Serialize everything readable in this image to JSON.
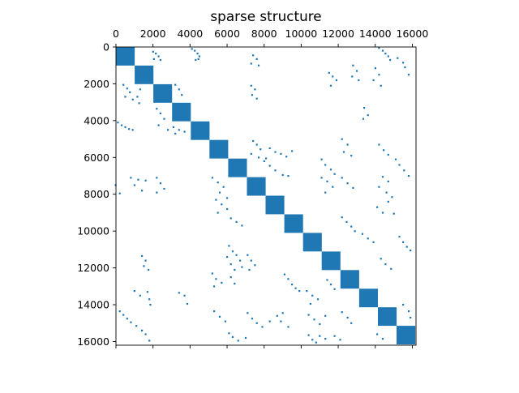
{
  "chart_data": {
    "type": "scatter",
    "subtype": "sparsity-pattern",
    "title": "sparse structure",
    "xlabel": "",
    "ylabel": "",
    "xlim": [
      0,
      16200
    ],
    "ylim": [
      16200,
      0
    ],
    "x_axis_position": "top",
    "y_axis_inverted": true,
    "grid": false,
    "legend": "none",
    "marker_color": "#1f77b4",
    "x_ticks": [
      0,
      2000,
      4000,
      6000,
      8000,
      10000,
      12000,
      14000,
      16000
    ],
    "x_tick_labels": [
      "0",
      "2000",
      "4000",
      "6000",
      "8000",
      "10000",
      "12000",
      "14000",
      "16000"
    ],
    "y_ticks": [
      0,
      2000,
      4000,
      6000,
      8000,
      10000,
      12000,
      14000,
      16000
    ],
    "y_tick_labels": [
      "0",
      "2000",
      "4000",
      "6000",
      "8000",
      "10000",
      "12000",
      "14000",
      "16000"
    ],
    "diagonal_blocks": [
      {
        "start": 0,
        "end": 1010
      },
      {
        "start": 1010,
        "end": 2020
      },
      {
        "start": 2020,
        "end": 3030
      },
      {
        "start": 3030,
        "end": 4040
      },
      {
        "start": 4040,
        "end": 5050
      },
      {
        "start": 5050,
        "end": 6060
      },
      {
        "start": 6060,
        "end": 7070
      },
      {
        "start": 7070,
        "end": 8080
      },
      {
        "start": 8080,
        "end": 9090
      },
      {
        "start": 9090,
        "end": 10100
      },
      {
        "start": 10100,
        "end": 11110
      },
      {
        "start": 11110,
        "end": 12120
      },
      {
        "start": 12120,
        "end": 13130
      },
      {
        "start": 13130,
        "end": 14140
      },
      {
        "start": 14140,
        "end": 15150
      },
      {
        "start": 15150,
        "end": 16160
      }
    ],
    "off_diagonal_points": [
      [
        4100,
        100
      ],
      [
        4250,
        200
      ],
      [
        4400,
        350
      ],
      [
        4500,
        500
      ],
      [
        4450,
        650
      ],
      [
        4300,
        700
      ],
      [
        2000,
        250
      ],
      [
        2150,
        350
      ],
      [
        2300,
        500
      ],
      [
        2050,
        650
      ],
      [
        2400,
        700
      ],
      [
        14200,
        50
      ],
      [
        14400,
        200
      ],
      [
        14550,
        350
      ],
      [
        14700,
        500
      ],
      [
        14800,
        700
      ],
      [
        15200,
        600
      ],
      [
        15500,
        850
      ],
      [
        15600,
        1100
      ],
      [
        15800,
        1500
      ],
      [
        7400,
        450
      ],
      [
        7600,
        650
      ],
      [
        7300,
        900
      ],
      [
        7700,
        1000
      ],
      [
        12800,
        1000
      ],
      [
        13000,
        1300
      ],
      [
        12750,
        1600
      ],
      [
        13100,
        1800
      ],
      [
        14000,
        1150
      ],
      [
        14200,
        1500
      ],
      [
        13900,
        1800
      ],
      [
        14300,
        2100
      ],
      [
        11500,
        1400
      ],
      [
        11700,
        1600
      ],
      [
        11900,
        1800
      ],
      [
        11600,
        2100
      ],
      [
        7300,
        2100
      ],
      [
        7500,
        2300
      ],
      [
        7350,
        2600
      ],
      [
        7600,
        2800
      ],
      [
        400,
        2050
      ],
      [
        600,
        2250
      ],
      [
        750,
        2450
      ],
      [
        500,
        2700
      ],
      [
        900,
        2850
      ],
      [
        1300,
        2300
      ],
      [
        1150,
        2700
      ],
      [
        1250,
        3050
      ],
      [
        3200,
        2050
      ],
      [
        3400,
        2300
      ],
      [
        3550,
        2600
      ],
      [
        13400,
        3300
      ],
      [
        13600,
        3700
      ],
      [
        13350,
        3900
      ],
      [
        2200,
        3350
      ],
      [
        2400,
        3600
      ],
      [
        2600,
        3900
      ],
      [
        2300,
        4250
      ],
      [
        2800,
        4500
      ],
      [
        3100,
        4350
      ],
      [
        3400,
        4500
      ],
      [
        3700,
        4600
      ],
      [
        3200,
        4700
      ],
      [
        100,
        4100
      ],
      [
        300,
        4250
      ],
      [
        500,
        4350
      ],
      [
        700,
        4450
      ],
      [
        900,
        4500
      ],
      [
        7400,
        5100
      ],
      [
        7600,
        5300
      ],
      [
        7800,
        5550
      ],
      [
        8300,
        5500
      ],
      [
        8600,
        5700
      ],
      [
        8900,
        5800
      ],
      [
        9200,
        5950
      ],
      [
        9500,
        5650
      ],
      [
        7300,
        5800
      ],
      [
        7700,
        6000
      ],
      [
        8100,
        6050
      ],
      [
        8000,
        6200
      ],
      [
        8300,
        6450
      ],
      [
        8600,
        6700
      ],
      [
        9000,
        6950
      ],
      [
        9300,
        7000
      ],
      [
        11100,
        6100
      ],
      [
        11300,
        6400
      ],
      [
        11600,
        6650
      ],
      [
        11800,
        6900
      ],
      [
        12200,
        5000
      ],
      [
        12500,
        5300
      ],
      [
        12300,
        5700
      ],
      [
        12700,
        5900
      ],
      [
        14200,
        5300
      ],
      [
        14450,
        5600
      ],
      [
        14700,
        5850
      ],
      [
        15100,
        6100
      ],
      [
        15300,
        6400
      ],
      [
        15550,
        6700
      ],
      [
        15800,
        7000
      ],
      [
        800,
        7100
      ],
      [
        1200,
        7200
      ],
      [
        1600,
        7250
      ],
      [
        1000,
        7500
      ],
      [
        1400,
        7800
      ],
      [
        2200,
        7100
      ],
      [
        2400,
        7400
      ],
      [
        2600,
        7700
      ],
      [
        2200,
        7900
      ],
      [
        -20,
        7500
      ],
      [
        200,
        7950
      ],
      [
        5200,
        7100
      ],
      [
        5500,
        7350
      ],
      [
        5800,
        7600
      ],
      [
        5600,
        7900
      ],
      [
        6000,
        8200
      ],
      [
        5400,
        8300
      ],
      [
        5700,
        8550
      ],
      [
        6000,
        8800
      ],
      [
        5500,
        9000
      ],
      [
        11100,
        7100
      ],
      [
        11400,
        7300
      ],
      [
        11700,
        7600
      ],
      [
        11300,
        7900
      ],
      [
        12200,
        7100
      ],
      [
        12500,
        7400
      ],
      [
        12800,
        7650
      ],
      [
        14400,
        7050
      ],
      [
        14700,
        7300
      ],
      [
        14200,
        7600
      ],
      [
        14600,
        7900
      ],
      [
        14900,
        8150
      ],
      [
        14100,
        8700
      ],
      [
        14400,
        9000
      ],
      [
        14700,
        8400
      ],
      [
        15000,
        9050
      ],
      [
        6200,
        9300
      ],
      [
        6500,
        9500
      ],
      [
        6800,
        9700
      ],
      [
        12200,
        9250
      ],
      [
        12450,
        9500
      ],
      [
        12700,
        9750
      ],
      [
        12900,
        10000
      ],
      [
        13300,
        10150
      ],
      [
        13600,
        10400
      ],
      [
        13900,
        10600
      ],
      [
        15300,
        10300
      ],
      [
        15500,
        10600
      ],
      [
        15700,
        10850
      ],
      [
        15900,
        11050
      ],
      [
        6100,
        10800
      ],
      [
        6300,
        11100
      ],
      [
        6500,
        11300
      ],
      [
        6700,
        11600
      ],
      [
        6000,
        11400
      ],
      [
        6200,
        11800
      ],
      [
        6400,
        12100
      ],
      [
        6800,
        11950
      ],
      [
        7100,
        11300
      ],
      [
        7300,
        11600
      ],
      [
        7500,
        11850
      ],
      [
        7200,
        12100
      ],
      [
        1400,
        11350
      ],
      [
        1600,
        11600
      ],
      [
        1500,
        11900
      ],
      [
        1750,
        12100
      ],
      [
        14300,
        11500
      ],
      [
        14550,
        11800
      ],
      [
        14850,
        12050
      ],
      [
        5200,
        12300
      ],
      [
        5400,
        12600
      ],
      [
        5700,
        12800
      ],
      [
        5300,
        13000
      ],
      [
        6200,
        12500
      ],
      [
        6400,
        12850
      ],
      [
        9100,
        12350
      ],
      [
        9300,
        12600
      ],
      [
        9500,
        12900
      ],
      [
        9700,
        13100
      ],
      [
        9900,
        13250
      ],
      [
        10300,
        13250
      ],
      [
        10600,
        13500
      ],
      [
        10900,
        13700
      ],
      [
        10500,
        13950
      ],
      [
        11400,
        12650
      ],
      [
        11600,
        12900
      ],
      [
        11800,
        13150
      ],
      [
        1000,
        13250
      ],
      [
        1300,
        13500
      ],
      [
        1700,
        13300
      ],
      [
        1800,
        13700
      ],
      [
        1850,
        14000
      ],
      [
        3400,
        13350
      ],
      [
        3700,
        13500
      ],
      [
        3850,
        13950
      ],
      [
        200,
        14350
      ],
      [
        400,
        14550
      ],
      [
        600,
        14750
      ],
      [
        800,
        14950
      ],
      [
        1100,
        15150
      ],
      [
        1400,
        15400
      ],
      [
        1600,
        15600
      ],
      [
        1800,
        15950
      ],
      [
        5300,
        14350
      ],
      [
        5600,
        14650
      ],
      [
        5900,
        14900
      ],
      [
        7100,
        14450
      ],
      [
        7350,
        14750
      ],
      [
        7600,
        15000
      ],
      [
        7900,
        15200
      ],
      [
        8300,
        14900
      ],
      [
        8700,
        14600
      ],
      [
        9000,
        14450
      ],
      [
        8900,
        14900
      ],
      [
        9300,
        15200
      ],
      [
        10400,
        14550
      ],
      [
        10700,
        14800
      ],
      [
        11000,
        15050
      ],
      [
        11300,
        14600
      ],
      [
        12200,
        14400
      ],
      [
        12500,
        14700
      ],
      [
        12700,
        15000
      ],
      [
        15500,
        14000
      ],
      [
        15800,
        14350
      ],
      [
        15900,
        14700
      ],
      [
        10400,
        15650
      ],
      [
        10600,
        15900
      ],
      [
        10800,
        16050
      ],
      [
        11000,
        15700
      ],
      [
        11300,
        15850
      ],
      [
        11800,
        15700
      ],
      [
        12100,
        15900
      ],
      [
        6100,
        15550
      ],
      [
        6300,
        15750
      ],
      [
        6600,
        15950
      ],
      [
        7000,
        15800
      ],
      [
        14100,
        15600
      ],
      [
        14400,
        15850
      ]
    ]
  }
}
